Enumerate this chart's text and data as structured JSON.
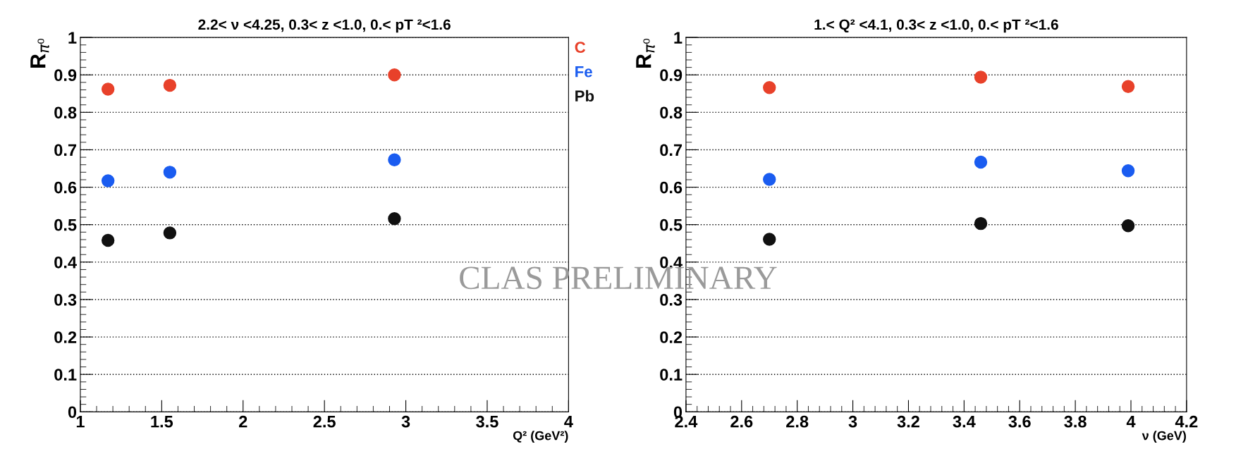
{
  "chart_data": [
    {
      "type": "scatter",
      "title": "2.2< ν <4.25, 0.3< z <1.0, 0.< pT ²<1.6",
      "xlabel": "Q² (GeV²)",
      "ylabel": "R$_{π⁰}$",
      "x": [
        1.17,
        1.55,
        2.93
      ],
      "series": [
        {
          "name": "C",
          "color": "#e8412a",
          "values": [
            0.862,
            0.872,
            0.9
          ]
        },
        {
          "name": "Fe",
          "color": "#1a5cf0",
          "values": [
            0.617,
            0.64,
            0.673
          ]
        },
        {
          "name": "Pb",
          "color": "#111111",
          "values": [
            0.458,
            0.478,
            0.516
          ]
        }
      ],
      "xlim": [
        1,
        4
      ],
      "xticks": [
        1,
        1.5,
        2,
        2.5,
        3,
        3.5,
        4
      ],
      "ylim": [
        0,
        1
      ],
      "yticks": [
        0,
        0.1,
        0.2,
        0.3,
        0.4,
        0.5,
        0.6,
        0.7,
        0.8,
        0.9,
        1
      ],
      "grid": "y",
      "legend": "right",
      "marker": "circle",
      "annotations": [
        "CLAS PRELIMINARY"
      ]
    },
    {
      "type": "scatter",
      "title": "1.< Q² <4.1, 0.3< z <1.0, 0.< pT ²<1.6",
      "xlabel": "ν (GeV)",
      "ylabel": "R$_{π⁰}$",
      "x": [
        2.7,
        3.46,
        3.99
      ],
      "series": [
        {
          "color": "#e8412a",
          "values": [
            0.866,
            0.894,
            0.869
          ]
        },
        {
          "color": "#1a5cf0",
          "values": [
            0.621,
            0.667,
            0.644
          ]
        },
        {
          "color": "#111111",
          "values": [
            0.461,
            0.503,
            0.497
          ]
        }
      ],
      "xlim": [
        2.4,
        4.2
      ],
      "xticks": [
        2.4,
        2.6,
        2.8,
        3,
        3.2,
        3.4,
        3.6,
        3.8,
        4,
        4.2
      ],
      "ylim": [
        0,
        1
      ],
      "yticks": [
        0,
        0.1,
        0.2,
        0.3,
        0.4,
        0.5,
        0.6,
        0.7,
        0.8,
        0.9,
        1
      ],
      "grid": "y",
      "marker": "circle"
    }
  ]
}
